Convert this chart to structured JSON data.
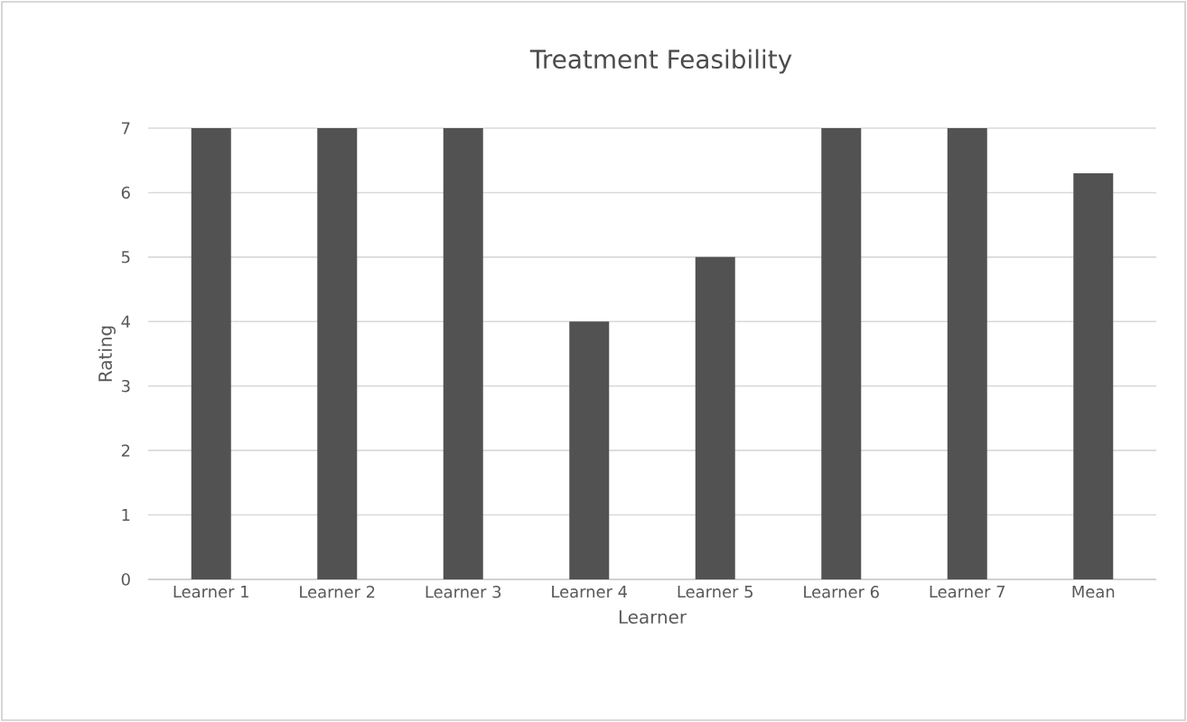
{
  "chart_data": {
    "type": "bar",
    "title": "Treatment Feasibility",
    "xlabel": "Learner",
    "ylabel": "Rating",
    "categories": [
      "Learner 1",
      "Learner 2",
      "Learner 3",
      "Learner 4",
      "Learner 5",
      "Learner 6",
      "Learner 7",
      "Mean"
    ],
    "values": [
      7,
      7,
      7,
      4,
      5,
      7,
      7,
      6.3
    ],
    "color": "#525252",
    "ylim": [
      0,
      7
    ],
    "yticks": [
      0,
      1,
      2,
      3,
      4,
      5,
      6,
      7
    ],
    "grid": "y"
  }
}
